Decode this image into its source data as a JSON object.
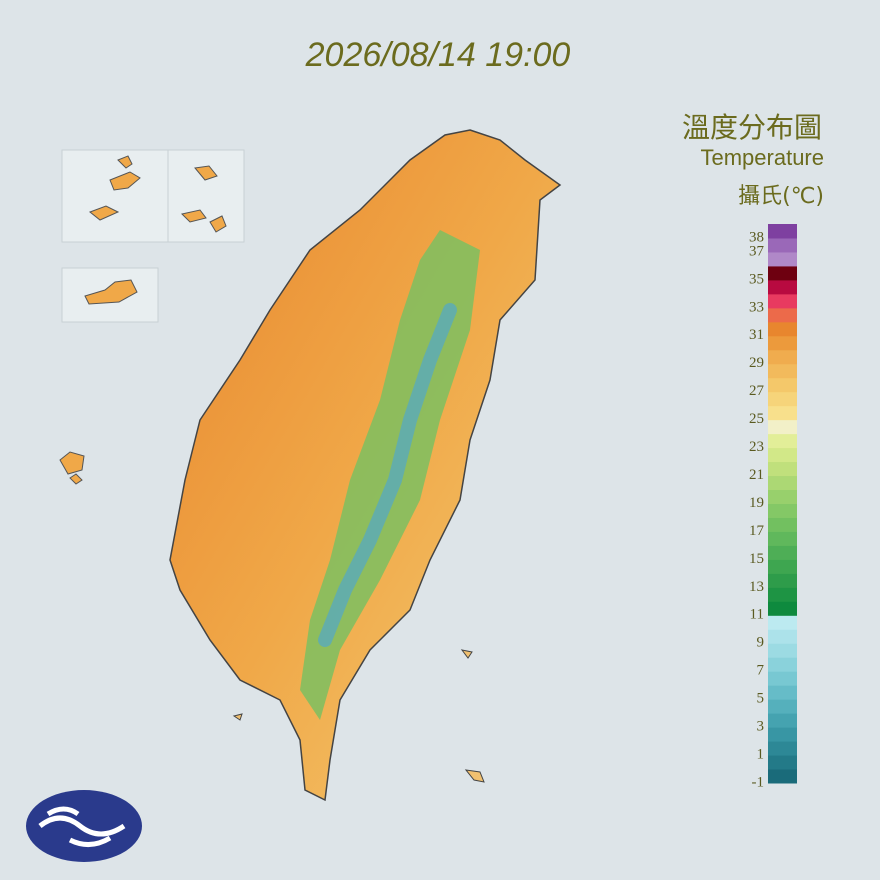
{
  "map": {
    "title": "2026/08/14 19:00",
    "legend": {
      "title": "溫度分布圖",
      "subtitle": "Temperature",
      "unit": "攝氏(℃)",
      "range": [
        -1,
        39
      ],
      "ticks": [
        38,
        37,
        35,
        33,
        31,
        29,
        27,
        25,
        23,
        21,
        19,
        17,
        15,
        13,
        11,
        9,
        7,
        5,
        3,
        1,
        -1
      ],
      "colors": [
        "#1a6b7a",
        "#237a88",
        "#2d8896",
        "#3896a4",
        "#45a3b0",
        "#55b0bc",
        "#66bcc8",
        "#78c8d2",
        "#8ad2db",
        "#9cdbe3",
        "#acE2ea",
        "#bceaf0",
        "#0e8a3e",
        "#1e9444",
        "#2e9c4a",
        "#3ea650",
        "#4eae56",
        "#60b85c",
        "#72c060",
        "#84c866",
        "#98d06c",
        "#acd874",
        "#c0e07c",
        "#d2e888",
        "#e2ee98",
        "#f2f0c8",
        "#f8e08c",
        "#f6d47a",
        "#f4c86a",
        "#f2ba5c",
        "#f0ac4e",
        "#ec9a3c",
        "#e8862e",
        "#ec6a4a",
        "#e83a60",
        "#b80a40",
        "#6e0010",
        "#b088c8",
        "#9a68b8",
        "#7e40a0"
      ]
    }
  }
}
